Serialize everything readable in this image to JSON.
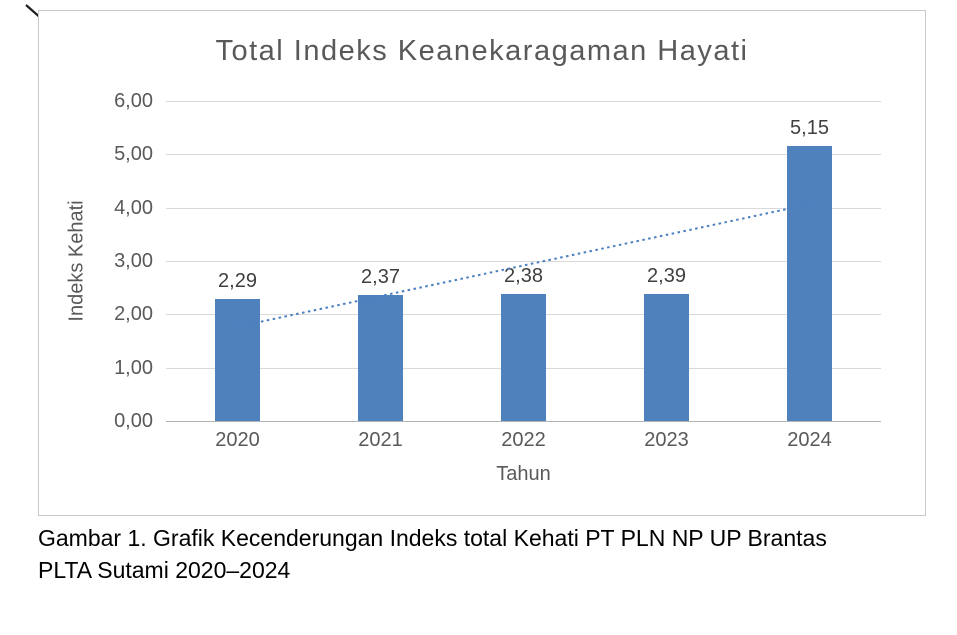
{
  "figure": {
    "caption_lines": [
      "Gambar 1. Grafik Kecenderungan Indeks total Kehati PT PLN NP UP Brantas",
      "PLTA Sutami 2020–2024"
    ]
  },
  "chart_data": {
    "type": "bar",
    "title": "Total Indeks Keanekaragaman Hayati",
    "xlabel": "Tahun",
    "ylabel": "Indeks Kehati",
    "categories": [
      "2020",
      "2021",
      "2022",
      "2023",
      "2024"
    ],
    "values": [
      2.29,
      2.37,
      2.38,
      2.39,
      5.15
    ],
    "value_labels": [
      "2,29",
      "2,37",
      "2,38",
      "2,39",
      "5,15"
    ],
    "y_ticks": [
      "6,00",
      "5,00",
      "4,00",
      "3,00",
      "2,00",
      "1,00",
      "0,00"
    ],
    "ylim": [
      0,
      6
    ],
    "grid": true,
    "legend": "none",
    "bar_color": "#4f81bd",
    "trendline": {
      "style": "dotted",
      "color": "#4a7ebf"
    }
  }
}
